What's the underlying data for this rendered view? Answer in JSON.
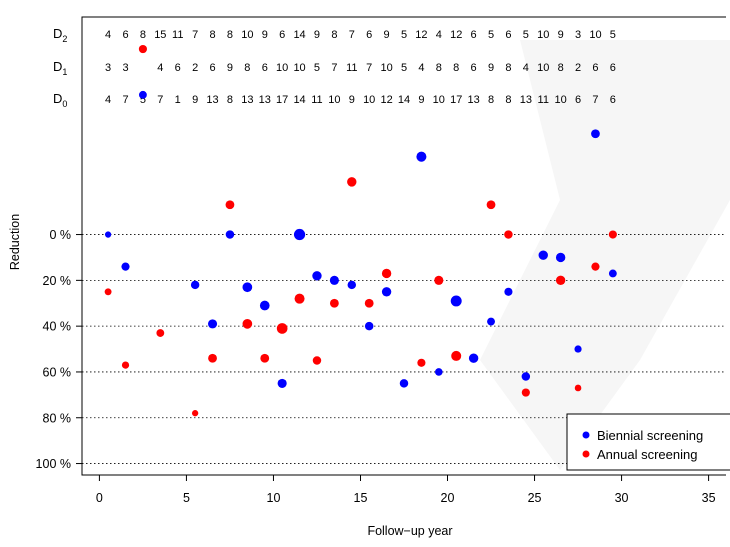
{
  "chart_data": {
    "type": "scatter",
    "xlabel": "Follow−up year",
    "ylabel": "Reduction",
    "xlim": [
      -1,
      36
    ],
    "ylim": [
      105,
      -95
    ],
    "x_ticks": [
      "0",
      "5",
      "10",
      "15",
      "20",
      "25",
      "30",
      "35"
    ],
    "y_ticks": [
      "0 %",
      "20 %",
      "40 %",
      "60 %",
      "80 %",
      "100 %"
    ],
    "grid": "dotted horizontal",
    "legend_position": "bottom-right",
    "count_rows": [
      {
        "label": "D",
        "sub": "2",
        "counts": [
          4,
          6,
          8,
          15,
          11,
          7,
          8,
          8,
          10,
          9,
          6,
          14,
          9,
          8,
          7,
          6,
          9,
          5,
          12,
          4,
          12,
          6,
          5,
          6,
          5,
          10,
          9,
          3,
          10,
          5
        ]
      },
      {
        "label": "D",
        "sub": "1",
        "counts": [
          3,
          3,
          "",
          4,
          6,
          2,
          6,
          9,
          8,
          6,
          10,
          10,
          5,
          7,
          11,
          7,
          10,
          5,
          4,
          8,
          8,
          6,
          9,
          8,
          4,
          10,
          8,
          2,
          6,
          6
        ]
      },
      {
        "label": "D",
        "sub": "0",
        "counts": [
          4,
          7,
          5,
          7,
          1,
          9,
          13,
          8,
          13,
          13,
          17,
          14,
          11,
          10,
          9,
          10,
          12,
          14,
          9,
          10,
          17,
          13,
          8,
          8,
          13,
          11,
          10,
          6,
          7,
          6
        ]
      }
    ],
    "series": [
      {
        "name": "Biennial screening",
        "color": "#0000ff",
        "points": [
          {
            "x": 0.5,
            "y": 0,
            "size": 1
          },
          {
            "x": 1.5,
            "y": 14,
            "size": 1.6
          },
          {
            "x": 2.5,
            "y": -61,
            "size": 1.5
          },
          {
            "x": 5.5,
            "y": 22,
            "size": 1.7
          },
          {
            "x": 6.5,
            "y": 39,
            "size": 1.9
          },
          {
            "x": 7.5,
            "y": 0,
            "size": 1.7
          },
          {
            "x": 8.5,
            "y": 23,
            "size": 2.1
          },
          {
            "x": 9.5,
            "y": 31,
            "size": 2.1
          },
          {
            "x": 10.5,
            "y": 65,
            "size": 1.9
          },
          {
            "x": 11.5,
            "y": 0,
            "size": 2.6
          },
          {
            "x": 12.5,
            "y": 18,
            "size": 2
          },
          {
            "x": 13.5,
            "y": 20,
            "size": 1.9
          },
          {
            "x": 14.5,
            "y": 22,
            "size": 1.7
          },
          {
            "x": 15.5,
            "y": 40,
            "size": 1.7
          },
          {
            "x": 16.5,
            "y": 25,
            "size": 2
          },
          {
            "x": 17.5,
            "y": 65,
            "size": 1.7
          },
          {
            "x": 18.5,
            "y": -34,
            "size": 2.2
          },
          {
            "x": 19.5,
            "y": 60,
            "size": 1.4
          },
          {
            "x": 20.5,
            "y": 29,
            "size": 2.5
          },
          {
            "x": 21.5,
            "y": 54,
            "size": 2
          },
          {
            "x": 22.5,
            "y": 38,
            "size": 1.5
          },
          {
            "x": 23.5,
            "y": 25,
            "size": 1.6
          },
          {
            "x": 24.5,
            "y": 62,
            "size": 1.7
          },
          {
            "x": 25.5,
            "y": 9,
            "size": 2
          },
          {
            "x": 26.5,
            "y": 10,
            "size": 2
          },
          {
            "x": 27.5,
            "y": 50,
            "size": 1.3
          },
          {
            "x": 28.5,
            "y": -44,
            "size": 1.8
          },
          {
            "x": 29.5,
            "y": 17,
            "size": 1.5
          }
        ]
      },
      {
        "name": "Annual screening",
        "color": "#ff0000",
        "points": [
          {
            "x": 0.5,
            "y": 25,
            "size": 1.2
          },
          {
            "x": 1.5,
            "y": 57,
            "size": 1.3
          },
          {
            "x": 2.5,
            "y": -81,
            "size": 1.6
          },
          {
            "x": 3.5,
            "y": 43,
            "size": 1.5
          },
          {
            "x": 5.5,
            "y": 78,
            "size": 1
          },
          {
            "x": 6.5,
            "y": 54,
            "size": 1.8
          },
          {
            "x": 7.5,
            "y": -13,
            "size": 1.8
          },
          {
            "x": 8.5,
            "y": 39,
            "size": 2.1
          },
          {
            "x": 9.5,
            "y": 54,
            "size": 1.8
          },
          {
            "x": 10.5,
            "y": 41,
            "size": 2.4
          },
          {
            "x": 11.5,
            "y": 28,
            "size": 2.2
          },
          {
            "x": 12.5,
            "y": 55,
            "size": 1.7
          },
          {
            "x": 13.5,
            "y": 30,
            "size": 1.8
          },
          {
            "x": 14.5,
            "y": -23,
            "size": 2
          },
          {
            "x": 15.5,
            "y": 30,
            "size": 1.8
          },
          {
            "x": 16.5,
            "y": 17,
            "size": 2
          },
          {
            "x": 18.5,
            "y": 56,
            "size": 1.6
          },
          {
            "x": 19.5,
            "y": 20,
            "size": 1.9
          },
          {
            "x": 20.5,
            "y": 53,
            "size": 2.2
          },
          {
            "x": 22.5,
            "y": -13,
            "size": 1.8
          },
          {
            "x": 23.5,
            "y": 0,
            "size": 1.7
          },
          {
            "x": 24.5,
            "y": 69,
            "size": 1.6
          },
          {
            "x": 26.5,
            "y": 20,
            "size": 2
          },
          {
            "x": 27.5,
            "y": 67,
            "size": 1.1
          },
          {
            "x": 28.5,
            "y": 14,
            "size": 1.6
          },
          {
            "x": 29.5,
            "y": 0,
            "size": 1.6
          }
        ]
      }
    ]
  }
}
